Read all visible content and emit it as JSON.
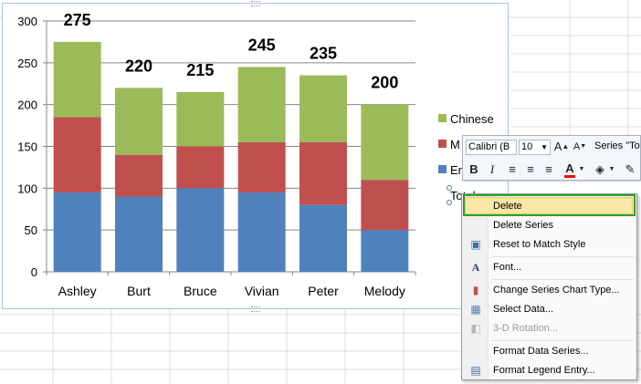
{
  "chart_data": {
    "type": "bar",
    "stacked": true,
    "categories": [
      "Ashley",
      "Burt",
      "Bruce",
      "Vivian",
      "Peter",
      "Melody"
    ],
    "series": [
      {
        "name": "English",
        "values": [
          95,
          90,
          100,
          95,
          80,
          50
        ],
        "color": "#4f81bd"
      },
      {
        "name": "Math",
        "values": [
          90,
          50,
          50,
          60,
          75,
          60
        ],
        "color": "#c0504d"
      },
      {
        "name": "Chinese",
        "values": [
          90,
          80,
          65,
          90,
          80,
          90
        ],
        "color": "#9bbb59"
      }
    ],
    "totals": [
      275,
      220,
      215,
      245,
      235,
      200
    ],
    "ylim": [
      0,
      300
    ],
    "yticks": [
      0,
      50,
      100,
      150,
      200,
      250,
      300
    ],
    "grid": true,
    "legend_position": "right"
  },
  "legend": {
    "items": [
      {
        "label": "Chinese",
        "color": "#9bbb59"
      },
      {
        "label": "M",
        "color": "#c0504d"
      },
      {
        "label": "En",
        "color": "#4f81bd"
      }
    ],
    "selected_label": "Total"
  },
  "minibar": {
    "font_name": "Calibri (B",
    "font_size": "10",
    "series_selector": "Series \"Tot",
    "grow_font": "A",
    "shrink_font": "A",
    "bold": "B",
    "italic": "I",
    "font_color_letter": "A",
    "font_color": "#ff0000"
  },
  "context_menu": {
    "items": [
      {
        "label": "Delete",
        "icon": "none",
        "enabled": true,
        "highlighted": true
      },
      {
        "label": "Delete Series",
        "icon": "none",
        "enabled": true
      },
      {
        "label": "Reset to Match Style",
        "icon": "reset-style-icon",
        "enabled": true
      },
      {
        "label": "Font...",
        "icon": "font-icon",
        "enabled": true
      },
      {
        "label": "Change Series Chart Type...",
        "icon": "chart-type-icon",
        "enabled": true
      },
      {
        "label": "Select Data...",
        "icon": "select-data-icon",
        "enabled": true
      },
      {
        "label": "3-D Rotation...",
        "icon": "rotation-icon",
        "enabled": false
      },
      {
        "label": "Format Data Series...",
        "icon": "none",
        "enabled": true
      },
      {
        "label": "Format Legend Entry...",
        "icon": "format-icon",
        "enabled": true
      }
    ]
  }
}
